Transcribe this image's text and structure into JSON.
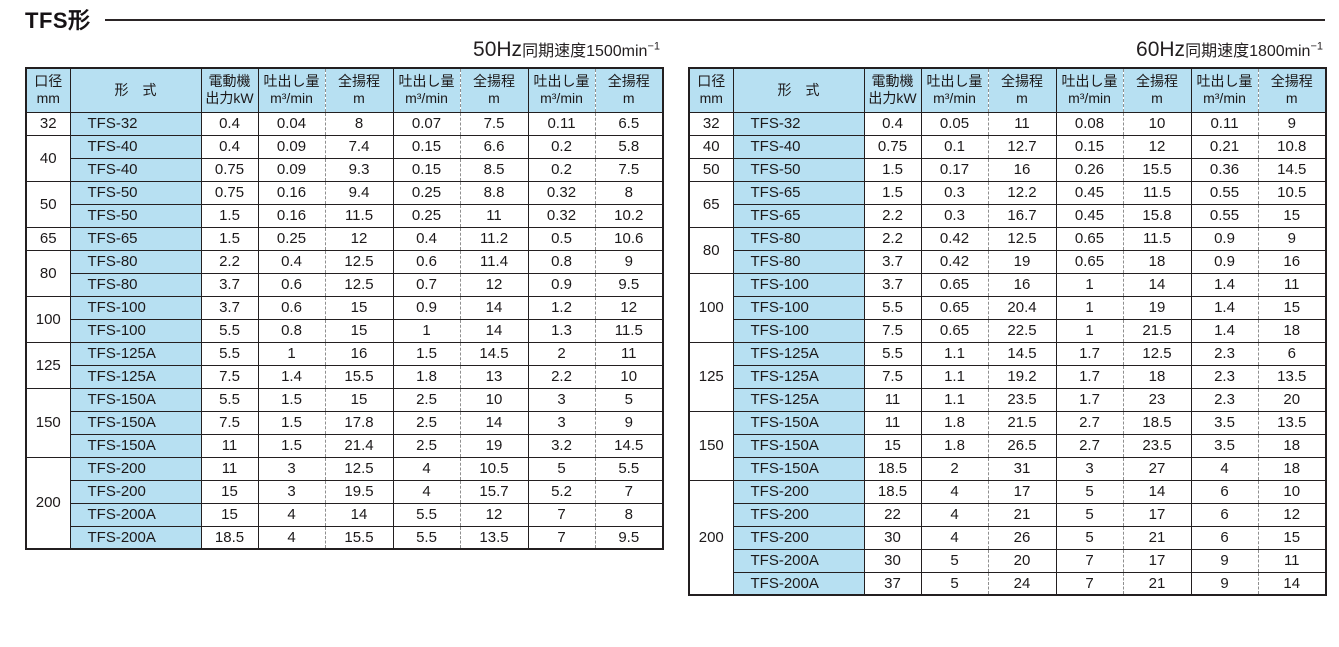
{
  "title": "TFS形",
  "columns": {
    "bore": {
      "line1": "口径",
      "line2": "mm"
    },
    "model": "形　式",
    "motor": {
      "line1": "電動機",
      "line2": "出力kW"
    },
    "flow": {
      "line1": "吐出し量",
      "line2": "m³/min"
    },
    "head": {
      "line1": "全揚程",
      "line2": "m"
    }
  },
  "colors": {
    "header_blue": "#b7e0f2",
    "border_dark": "#231f20",
    "dashed_gray": "#8f8f8f"
  },
  "tables": [
    {
      "caption": {
        "frequency": "50Hz",
        "label": "同期速度",
        "speed": "1500min",
        "exponent": "−1"
      },
      "groups": [
        {
          "bore": "32",
          "rows": [
            [
              "TFS-32",
              "0.4",
              "0.04",
              "8",
              "0.07",
              "7.5",
              "0.11",
              "6.5"
            ]
          ]
        },
        {
          "bore": "40",
          "rows": [
            [
              "TFS-40",
              "0.4",
              "0.09",
              "7.4",
              "0.15",
              "6.6",
              "0.2",
              "5.8"
            ],
            [
              "TFS-40",
              "0.75",
              "0.09",
              "9.3",
              "0.15",
              "8.5",
              "0.2",
              "7.5"
            ]
          ]
        },
        {
          "bore": "50",
          "rows": [
            [
              "TFS-50",
              "0.75",
              "0.16",
              "9.4",
              "0.25",
              "8.8",
              "0.32",
              "8"
            ],
            [
              "TFS-50",
              "1.5",
              "0.16",
              "11.5",
              "0.25",
              "11",
              "0.32",
              "10.2"
            ]
          ]
        },
        {
          "bore": "65",
          "rows": [
            [
              "TFS-65",
              "1.5",
              "0.25",
              "12",
              "0.4",
              "11.2",
              "0.5",
              "10.6"
            ]
          ]
        },
        {
          "bore": "80",
          "rows": [
            [
              "TFS-80",
              "2.2",
              "0.4",
              "12.5",
              "0.6",
              "11.4",
              "0.8",
              "9"
            ],
            [
              "TFS-80",
              "3.7",
              "0.6",
              "12.5",
              "0.7",
              "12",
              "0.9",
              "9.5"
            ]
          ]
        },
        {
          "bore": "100",
          "rows": [
            [
              "TFS-100",
              "3.7",
              "0.6",
              "15",
              "0.9",
              "14",
              "1.2",
              "12"
            ],
            [
              "TFS-100",
              "5.5",
              "0.8",
              "15",
              "1",
              "14",
              "1.3",
              "11.5"
            ]
          ]
        },
        {
          "bore": "125",
          "rows": [
            [
              "TFS-125A",
              "5.5",
              "1",
              "16",
              "1.5",
              "14.5",
              "2",
              "11"
            ],
            [
              "TFS-125A",
              "7.5",
              "1.4",
              "15.5",
              "1.8",
              "13",
              "2.2",
              "10"
            ]
          ]
        },
        {
          "bore": "150",
          "rows": [
            [
              "TFS-150A",
              "5.5",
              "1.5",
              "15",
              "2.5",
              "10",
              "3",
              "5"
            ],
            [
              "TFS-150A",
              "7.5",
              "1.5",
              "17.8",
              "2.5",
              "14",
              "3",
              "9"
            ],
            [
              "TFS-150A",
              "11",
              "1.5",
              "21.4",
              "2.5",
              "19",
              "3.2",
              "14.5"
            ]
          ]
        },
        {
          "bore": "200",
          "rows": [
            [
              "TFS-200",
              "11",
              "3",
              "12.5",
              "4",
              "10.5",
              "5",
              "5.5"
            ],
            [
              "TFS-200",
              "15",
              "3",
              "19.5",
              "4",
              "15.7",
              "5.2",
              "7"
            ],
            [
              "TFS-200A",
              "15",
              "4",
              "14",
              "5.5",
              "12",
              "7",
              "8"
            ],
            [
              "TFS-200A",
              "18.5",
              "4",
              "15.5",
              "5.5",
              "13.5",
              "7",
              "9.5"
            ]
          ]
        }
      ]
    },
    {
      "caption": {
        "frequency": "60Hz",
        "label": "同期速度",
        "speed": "1800min",
        "exponent": "−1"
      },
      "groups": [
        {
          "bore": "32",
          "rows": [
            [
              "TFS-32",
              "0.4",
              "0.05",
              "11",
              "0.08",
              "10",
              "0.11",
              "9"
            ]
          ]
        },
        {
          "bore": "40",
          "rows": [
            [
              "TFS-40",
              "0.75",
              "0.1",
              "12.7",
              "0.15",
              "12",
              "0.21",
              "10.8"
            ]
          ]
        },
        {
          "bore": "50",
          "rows": [
            [
              "TFS-50",
              "1.5",
              "0.17",
              "16",
              "0.26",
              "15.5",
              "0.36",
              "14.5"
            ]
          ]
        },
        {
          "bore": "65",
          "rows": [
            [
              "TFS-65",
              "1.5",
              "0.3",
              "12.2",
              "0.45",
              "11.5",
              "0.55",
              "10.5"
            ],
            [
              "TFS-65",
              "2.2",
              "0.3",
              "16.7",
              "0.45",
              "15.8",
              "0.55",
              "15"
            ]
          ]
        },
        {
          "bore": "80",
          "rows": [
            [
              "TFS-80",
              "2.2",
              "0.42",
              "12.5",
              "0.65",
              "11.5",
              "0.9",
              "9"
            ],
            [
              "TFS-80",
              "3.7",
              "0.42",
              "19",
              "0.65",
              "18",
              "0.9",
              "16"
            ]
          ]
        },
        {
          "bore": "100",
          "rows": [
            [
              "TFS-100",
              "3.7",
              "0.65",
              "16",
              "1",
              "14",
              "1.4",
              "11"
            ],
            [
              "TFS-100",
              "5.5",
              "0.65",
              "20.4",
              "1",
              "19",
              "1.4",
              "15"
            ],
            [
              "TFS-100",
              "7.5",
              "0.65",
              "22.5",
              "1",
              "21.5",
              "1.4",
              "18"
            ]
          ]
        },
        {
          "bore": "125",
          "rows": [
            [
              "TFS-125A",
              "5.5",
              "1.1",
              "14.5",
              "1.7",
              "12.5",
              "2.3",
              "6"
            ],
            [
              "TFS-125A",
              "7.5",
              "1.1",
              "19.2",
              "1.7",
              "18",
              "2.3",
              "13.5"
            ],
            [
              "TFS-125A",
              "11",
              "1.1",
              "23.5",
              "1.7",
              "23",
              "2.3",
              "20"
            ]
          ]
        },
        {
          "bore": "150",
          "rows": [
            [
              "TFS-150A",
              "11",
              "1.8",
              "21.5",
              "2.7",
              "18.5",
              "3.5",
              "13.5"
            ],
            [
              "TFS-150A",
              "15",
              "1.8",
              "26.5",
              "2.7",
              "23.5",
              "3.5",
              "18"
            ],
            [
              "TFS-150A",
              "18.5",
              "2",
              "31",
              "3",
              "27",
              "4",
              "18"
            ]
          ]
        },
        {
          "bore": "200",
          "rows": [
            [
              "TFS-200",
              "18.5",
              "4",
              "17",
              "5",
              "14",
              "6",
              "10"
            ],
            [
              "TFS-200",
              "22",
              "4",
              "21",
              "5",
              "17",
              "6",
              "12"
            ],
            [
              "TFS-200",
              "30",
              "4",
              "26",
              "5",
              "21",
              "6",
              "15"
            ],
            [
              "TFS-200A",
              "30",
              "5",
              "20",
              "7",
              "17",
              "9",
              "11"
            ],
            [
              "TFS-200A",
              "37",
              "5",
              "24",
              "7",
              "21",
              "9",
              "14"
            ]
          ]
        }
      ]
    }
  ]
}
